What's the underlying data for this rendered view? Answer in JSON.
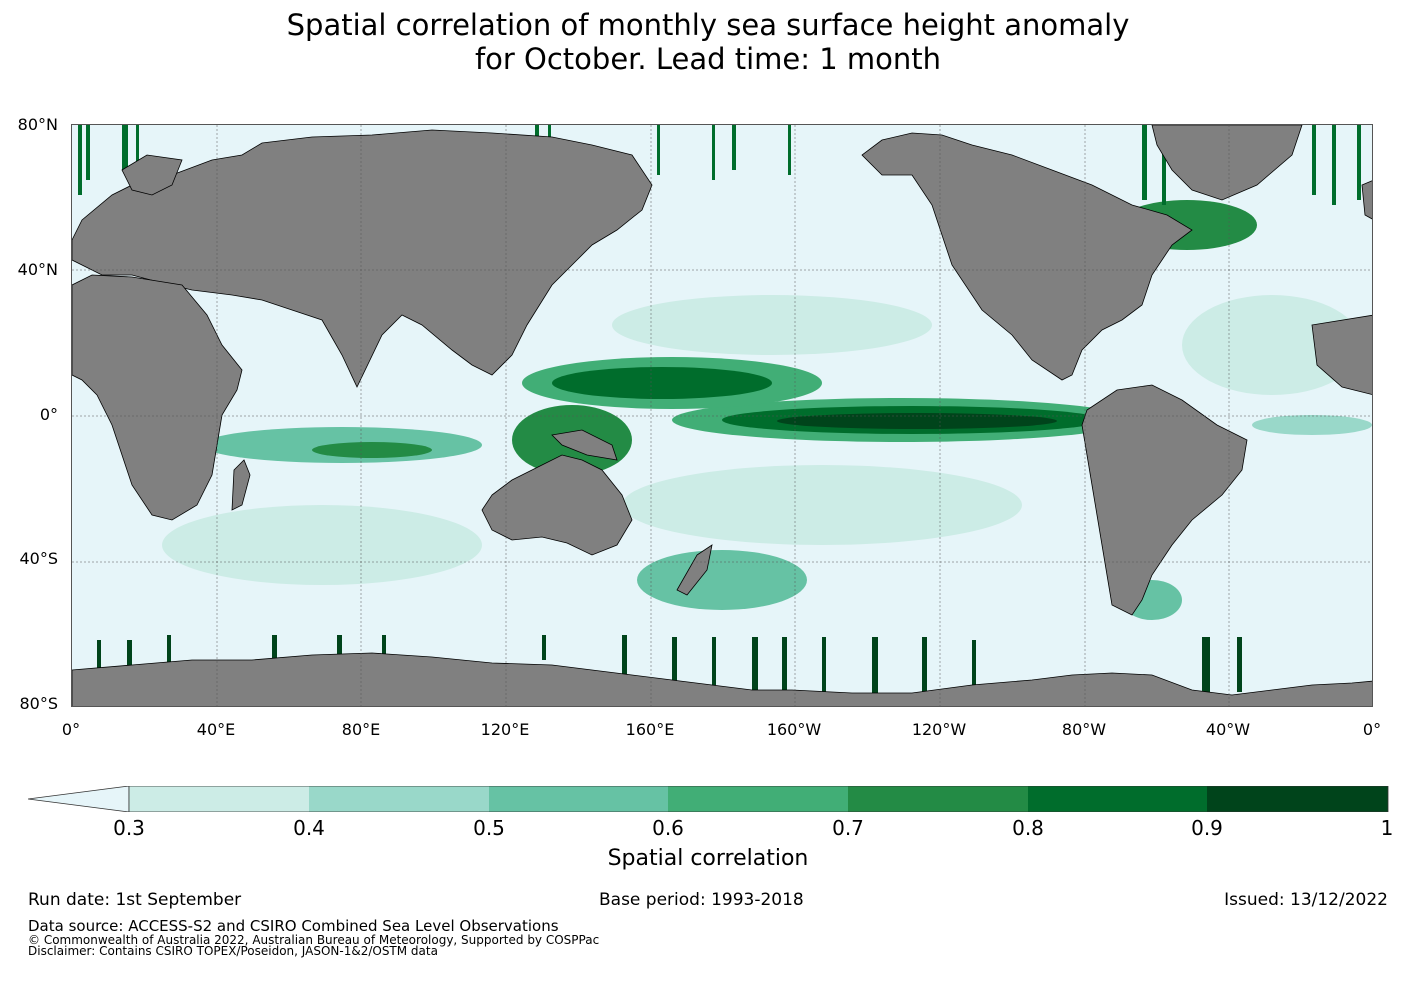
{
  "title_line1": "Spatial correlation of monthly sea surface height anomaly",
  "title_line2": "for October. Lead time: 1 month",
  "lat_ticks": [
    "80°N",
    "40°N",
    "0°",
    "40°S",
    "80°S"
  ],
  "lon_ticks": [
    "0°",
    "40°E",
    "80°E",
    "120°E",
    "160°E",
    "160°W",
    "120°W",
    "80°W",
    "40°W",
    "0°"
  ],
  "colorbar": {
    "label": "Spatial correlation",
    "ticks": [
      "0.3",
      "0.4",
      "0.5",
      "0.6",
      "0.7",
      "0.8",
      "0.9",
      "1"
    ],
    "colors": [
      "#e6f5f9",
      "#ccece6",
      "#99d8c9",
      "#66c2a4",
      "#41ae76",
      "#238b45",
      "#006d2c",
      "#00441b"
    ],
    "land_color": "#808080"
  },
  "footer": {
    "run_date": "Run date: 1st September",
    "base_period": "Base period: 1993-2018",
    "issued": "Issued: 13/12/2022",
    "data_source": "Data source: ACCESS-S2 and CSIRO Combined Sea Level Observations",
    "copyright": "© Commonwealth of Australia 2022, Australian Bureau of Meteorology, Supported by COSPPac",
    "disclaimer": "Disclaimer: Contains CSIRO TOPEX/Poseidon, JASON-1&2/OSTM data"
  }
}
